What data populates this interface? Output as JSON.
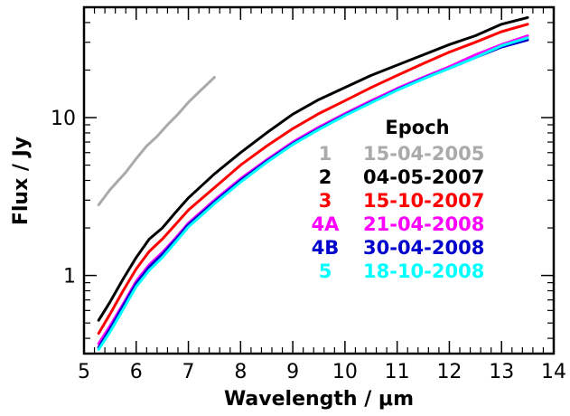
{
  "chart_data": {
    "type": "line",
    "title": "",
    "xlabel": "Wavelength / μm",
    "ylabel": "Flux / Jy",
    "xlim": [
      5,
      14
    ],
    "ylim": [
      0.32,
      50
    ],
    "yscale": "log",
    "grid": false,
    "x_ticks": [
      "5",
      "6",
      "7",
      "8",
      "9",
      "10",
      "11",
      "12",
      "13",
      "14"
    ],
    "y_ticks": [
      "1",
      "10"
    ],
    "legend": {
      "title": "Epoch",
      "placement": "right-middle"
    },
    "series": [
      {
        "name": "1",
        "date": "15-04-2005",
        "color": "#aaaaaa",
        "x": [
          5.28,
          5.5,
          5.8,
          6.0,
          6.2,
          6.4,
          6.6,
          6.8,
          7.0,
          7.2,
          7.5
        ],
        "y": [
          2.8,
          3.5,
          4.5,
          5.5,
          6.6,
          7.6,
          9.0,
          10.5,
          12.5,
          14.5,
          18
        ]
      },
      {
        "name": "2",
        "date": "04-05-2007",
        "color": "#000000",
        "x": [
          5.28,
          5.5,
          5.75,
          6.0,
          6.25,
          6.5,
          6.75,
          7.0,
          7.5,
          8.0,
          8.5,
          9.0,
          9.5,
          10.0,
          10.5,
          11.0,
          11.5,
          12.0,
          12.5,
          13.0,
          13.5
        ],
        "y": [
          0.52,
          0.68,
          0.95,
          1.3,
          1.7,
          2.0,
          2.5,
          3.1,
          4.4,
          6.0,
          8.0,
          10.5,
          13.0,
          15.5,
          18.5,
          21.5,
          25,
          29,
          33,
          39,
          43
        ]
      },
      {
        "name": "3",
        "date": "15-10-2007",
        "color": "#ff0000",
        "x": [
          5.28,
          5.5,
          5.75,
          6.0,
          6.25,
          6.5,
          6.75,
          7.0,
          7.5,
          8.0,
          8.5,
          9.0,
          9.5,
          10.0,
          10.5,
          11.0,
          11.5,
          12.0,
          12.5,
          13.0,
          13.5
        ],
        "y": [
          0.43,
          0.57,
          0.8,
          1.1,
          1.42,
          1.7,
          2.1,
          2.6,
          3.6,
          5.0,
          6.6,
          8.5,
          10.6,
          12.8,
          15.5,
          18.5,
          22,
          26,
          30,
          35,
          39
        ]
      },
      {
        "name": "4A",
        "date": "21-04-2008",
        "color": "#ff00ff",
        "x": [
          5.28,
          5.5,
          5.75,
          6.0,
          6.25,
          6.5,
          6.75,
          7.0,
          7.5,
          8.0,
          8.5,
          9.0,
          9.5,
          10.0,
          10.5,
          11.0,
          11.5,
          12.0,
          12.5,
          13.0,
          13.5
        ],
        "y": [
          0.37,
          0.48,
          0.66,
          0.92,
          1.17,
          1.4,
          1.72,
          2.15,
          3.0,
          4.1,
          5.4,
          7.0,
          8.7,
          10.6,
          12.8,
          15.3,
          18,
          21,
          25,
          29,
          33
        ]
      },
      {
        "name": "4B",
        "date": "30-04-2008",
        "color": "#0000cc",
        "x": [
          5.28,
          5.5,
          5.75,
          6.0,
          6.25,
          6.5,
          6.75,
          7.0,
          7.5,
          8.0,
          8.5,
          9.0,
          9.5,
          10.0,
          10.5,
          11.0,
          11.5,
          12.0,
          12.5,
          13.0,
          13.5
        ],
        "y": [
          0.35,
          0.46,
          0.64,
          0.89,
          1.13,
          1.36,
          1.68,
          2.1,
          2.93,
          4.0,
          5.3,
          6.85,
          8.5,
          10.4,
          12.5,
          15.0,
          17.7,
          20.5,
          24,
          28,
          31
        ]
      },
      {
        "name": "5",
        "date": "18-10-2008",
        "color": "#00ffff",
        "x": [
          5.28,
          5.5,
          5.75,
          6.0,
          6.25,
          6.5,
          6.75,
          7.0,
          7.5,
          8.0,
          8.5,
          9.0,
          9.5,
          10.0,
          10.5,
          11.0,
          11.5,
          12.0,
          12.5,
          13.0,
          13.5
        ],
        "y": [
          0.34,
          0.44,
          0.61,
          0.85,
          1.08,
          1.3,
          1.62,
          2.03,
          2.85,
          3.9,
          5.2,
          6.75,
          8.4,
          10.3,
          12.4,
          14.9,
          17.6,
          20.5,
          24,
          28.5,
          32
        ]
      }
    ]
  }
}
